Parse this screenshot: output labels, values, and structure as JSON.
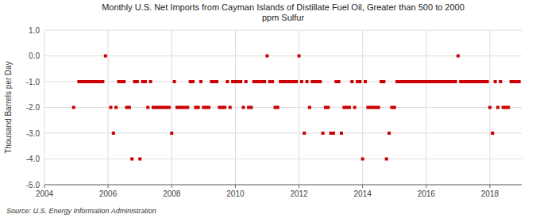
{
  "chart_data": {
    "type": "scatter",
    "title": "Monthly U.S. Net Imports from Cayman Islands of Distillate Fuel Oil, Greater than 500 to 2000\nppm Sulfur",
    "y_label": "Thousand Barrels per Day",
    "annotations": [
      "Source: U.S. Energy Information Administration"
    ],
    "color": "#cc0000",
    "marker": "square",
    "grid": true,
    "xlim": [
      2004,
      2019
    ],
    "ylim": [
      -5.0,
      1.0
    ],
    "xticks": [
      2004,
      2006,
      2008,
      2010,
      2012,
      2014,
      2016,
      2018
    ],
    "yticks": [
      {
        "value": 1.0,
        "label": "1.0"
      },
      {
        "value": 0.0,
        "label": "0.0"
      },
      {
        "value": -1.0,
        "label": "-1.0"
      },
      {
        "value": -2.0,
        "label": "-2.0"
      },
      {
        "value": -3.0,
        "label": "-3.0"
      },
      {
        "value": -4.0,
        "label": "-4.0"
      },
      {
        "value": -5.0,
        "label": "-5.0"
      }
    ],
    "x": [
      2004.917,
      2005.083,
      2005.167,
      2005.25,
      2005.333,
      2005.417,
      2005.5,
      2005.583,
      2005.667,
      2005.75,
      2005.833,
      2005.917,
      2006.083,
      2006.167,
      2006.25,
      2006.333,
      2006.417,
      2006.5,
      2006.583,
      2006.667,
      2006.75,
      2006.833,
      2006.917,
      2007.0,
      2007.083,
      2007.167,
      2007.25,
      2007.333,
      2007.417,
      2007.5,
      2007.583,
      2007.667,
      2007.75,
      2007.833,
      2007.917,
      2008.0,
      2008.083,
      2008.167,
      2008.25,
      2008.333,
      2008.417,
      2008.5,
      2008.583,
      2008.667,
      2008.75,
      2008.833,
      2008.917,
      2009.0,
      2009.083,
      2009.167,
      2009.25,
      2009.333,
      2009.417,
      2009.5,
      2009.583,
      2009.667,
      2009.75,
      2009.833,
      2009.917,
      2010.0,
      2010.083,
      2010.167,
      2010.25,
      2010.333,
      2010.417,
      2010.5,
      2010.583,
      2010.667,
      2010.75,
      2010.833,
      2010.917,
      2011.0,
      2011.083,
      2011.167,
      2011.25,
      2011.333,
      2011.417,
      2011.5,
      2011.583,
      2011.667,
      2011.75,
      2011.833,
      2011.917,
      2012.0,
      2012.083,
      2012.167,
      2012.25,
      2012.333,
      2012.417,
      2012.5,
      2012.583,
      2012.667,
      2012.75,
      2012.833,
      2012.917,
      2013.0,
      2013.083,
      2013.167,
      2013.25,
      2013.333,
      2013.417,
      2013.5,
      2013.583,
      2013.667,
      2013.75,
      2013.833,
      2013.917,
      2014.0,
      2014.083,
      2014.167,
      2014.25,
      2014.333,
      2014.417,
      2014.5,
      2014.583,
      2014.667,
      2014.75,
      2014.833,
      2014.917,
      2015.0,
      2015.083,
      2015.167,
      2015.25,
      2015.333,
      2015.417,
      2015.5,
      2015.583,
      2015.667,
      2015.75,
      2015.833,
      2015.917,
      2016.0,
      2016.083,
      2016.167,
      2016.25,
      2016.333,
      2016.417,
      2016.5,
      2016.583,
      2016.667,
      2016.75,
      2016.833,
      2016.917,
      2017.0,
      2017.083,
      2017.167,
      2017.25,
      2017.333,
      2017.417,
      2017.5,
      2017.583,
      2017.667,
      2017.75,
      2017.833,
      2017.917,
      2018.0,
      2018.083,
      2018.167,
      2018.25,
      2018.333,
      2018.417,
      2018.5,
      2018.583,
      2018.667,
      2018.75,
      2018.833,
      2018.917
    ],
    "values": [
      -2,
      -1,
      -1,
      -1,
      -1,
      -1,
      -1,
      -1,
      -1,
      -1,
      -1,
      0,
      -2,
      -3,
      -2,
      -1,
      -1,
      -1,
      -2,
      -2,
      -4,
      -1,
      -1,
      -4,
      -1,
      -1,
      -2,
      -1,
      -2,
      -2,
      -2,
      -2,
      -2,
      -2,
      -2,
      -3,
      -1,
      -2,
      -2,
      -2,
      -2,
      -2,
      -1,
      -1,
      -2,
      -2,
      -1,
      -2,
      -2,
      -2,
      -1,
      -1,
      -1,
      -2,
      -2,
      -2,
      -1,
      -2,
      -1,
      -1,
      -1,
      -1,
      -2,
      -1,
      -2,
      -2,
      -1,
      -1,
      -1,
      -1,
      -1,
      0,
      -1,
      -1,
      -2,
      -2,
      -1,
      -1,
      -1,
      -1,
      -1,
      -1,
      -1,
      0,
      -1,
      -3,
      -1,
      -2,
      -1,
      -1,
      -1,
      -1,
      -3,
      -2,
      -2,
      -3,
      -3,
      -1,
      -1,
      -3,
      -2,
      -2,
      -2,
      -1,
      -2,
      -1,
      -1,
      -4,
      -1,
      -2,
      -2,
      -2,
      -2,
      -2,
      -1,
      -1,
      -4,
      -3,
      -2,
      -2,
      -1,
      -1,
      -1,
      -1,
      -1,
      -1,
      -1,
      -1,
      -1,
      -1,
      -1,
      -1,
      -1,
      -1,
      -1,
      -1,
      -1,
      -1,
      -1,
      -1,
      -1,
      -1,
      -1,
      0,
      -1,
      -1,
      -1,
      -1,
      -1,
      -1,
      -1,
      -1,
      -1,
      -1,
      -1,
      -2,
      -3,
      -1,
      -2,
      -1,
      -2,
      -2,
      -2,
      -1,
      -1,
      -1,
      -1
    ]
  }
}
